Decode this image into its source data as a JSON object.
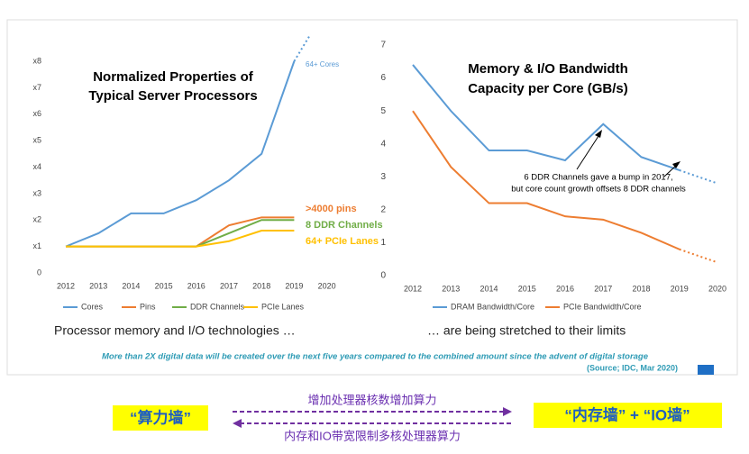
{
  "chart_data": [
    {
      "type": "line",
      "title": [
        "Normalized Properties of",
        "Typical Server Processors"
      ],
      "categories": [
        "2012",
        "2013",
        "2014",
        "2015",
        "2016",
        "2017",
        "2018",
        "2019",
        "2020"
      ],
      "ylim": [
        0,
        8
      ],
      "yticks": [
        0,
        {
          "value": 1,
          "label": "x1"
        },
        {
          "value": 2,
          "label": "x2"
        },
        {
          "value": 3,
          "label": "x3"
        },
        {
          "value": 4,
          "label": "x4"
        },
        {
          "value": 5,
          "label": "x5"
        },
        {
          "value": 6,
          "label": "x6"
        },
        {
          "value": 7,
          "label": "x7"
        },
        {
          "value": 8,
          "label": "x8"
        }
      ],
      "series": [
        {
          "name": "Cores",
          "color": "#5b9bd5",
          "values": [
            1,
            1.5,
            2.25,
            2.25,
            2.75,
            3.5,
            4.5,
            8,
            null
          ]
        },
        {
          "name": "Pins",
          "color": "#ed7d31",
          "values": [
            1,
            1,
            1,
            1,
            1,
            1.8,
            2.1,
            2.1,
            null
          ]
        },
        {
          "name": "DDR Channels",
          "color": "#70ad47",
          "values": [
            1,
            1,
            1,
            1,
            1,
            1.5,
            2,
            2,
            null
          ]
        },
        {
          "name": "PCIe Lanes",
          "color": "#ffc000",
          "values": [
            1,
            1,
            1,
            1,
            1,
            1.2,
            1.6,
            1.6,
            null
          ]
        }
      ],
      "annotations": [
        "64+ Cores",
        ">4000 pins",
        "8 DDR Channels",
        "64+ PCIe Lanes"
      ]
    },
    {
      "type": "line",
      "title": [
        "Memory & I/O Bandwidth",
        "Capacity per Core (GB/s)"
      ],
      "categories": [
        "2012",
        "2013",
        "2014",
        "2015",
        "2016",
        "2017",
        "2018",
        "2019",
        "2020"
      ],
      "ylim": [
        0,
        7
      ],
      "yticks": [
        0,
        1,
        2,
        3,
        4,
        5,
        6,
        7
      ],
      "series": [
        {
          "name": "DRAM Bandwidth/Core",
          "color": "#5b9bd5",
          "values": [
            6.4,
            5.0,
            3.8,
            3.8,
            3.5,
            4.6,
            3.6,
            3.2,
            2.8
          ]
        },
        {
          "name": "PCIe Bandwidth/Core",
          "color": "#ed7d31",
          "values": [
            5.0,
            3.3,
            2.2,
            2.2,
            1.8,
            1.7,
            1.3,
            0.8,
            0.4
          ]
        }
      ],
      "annotations": [
        "6 DDR Channels gave a bump in 2017,",
        "but core count growth offsets 8 DDR channels"
      ]
    }
  ],
  "captions": [
    "Processor memory and I/O technologies …",
    "… are being stretched to their limits"
  ],
  "footnote": "More than 2X digital data will be created over the next five years compared to the combined  amount since the advent of digital storage",
  "source": "(Source; IDC, Mar 2020)",
  "bottom": {
    "left_wall": "“算力墙”",
    "right_wall": "“内存墙” + “IO墙”",
    "top_arrow": "增加处理器核数增加算力",
    "bottom_arrow": "内存和IO带宽限制多核处理器算力"
  }
}
